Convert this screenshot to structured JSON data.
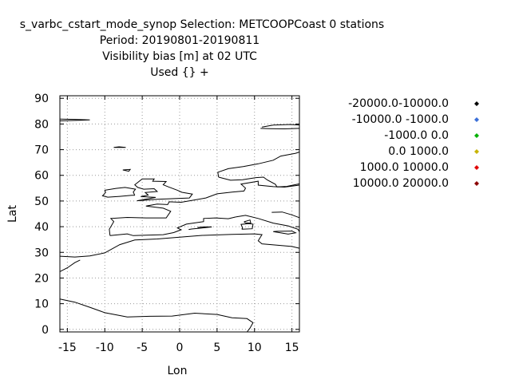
{
  "chart_data": {
    "type": "scatter",
    "title_lines": [
      "s_varbc_cstart_mode_synop   Selection: METCOOPCoast       0 stations",
      "Period: 20190801-20190811",
      "Visibility bias [m] at  02 UTC",
      "Used {} +"
    ],
    "xlabel": "Lon",
    "ylabel": "Lat",
    "xlim": [
      -16,
      16
    ],
    "ylim": [
      -1,
      91
    ],
    "x_ticks": [
      -15,
      -10,
      -5,
      0,
      5,
      10,
      15
    ],
    "y_ticks": [
      0,
      10,
      20,
      30,
      40,
      50,
      60,
      70,
      80,
      90
    ],
    "grid": true,
    "legend_position": "right",
    "series": [
      {
        "name": "-20000.0-10000.0",
        "color": "#000000",
        "points": []
      },
      {
        "name": "-10000.0 -1000.0",
        "color": "#3a6fd8",
        "points": []
      },
      {
        "name": "-1000.0 0.0",
        "color": "#00b000",
        "points": []
      },
      {
        "name": "0.0 1000.0",
        "color": "#c8b400",
        "points": []
      },
      {
        "name": "1000.0 10000.0",
        "color": "#e00000",
        "points": []
      },
      {
        "name": "10000.0 20000.0",
        "color": "#8b0000",
        "points": []
      }
    ]
  }
}
